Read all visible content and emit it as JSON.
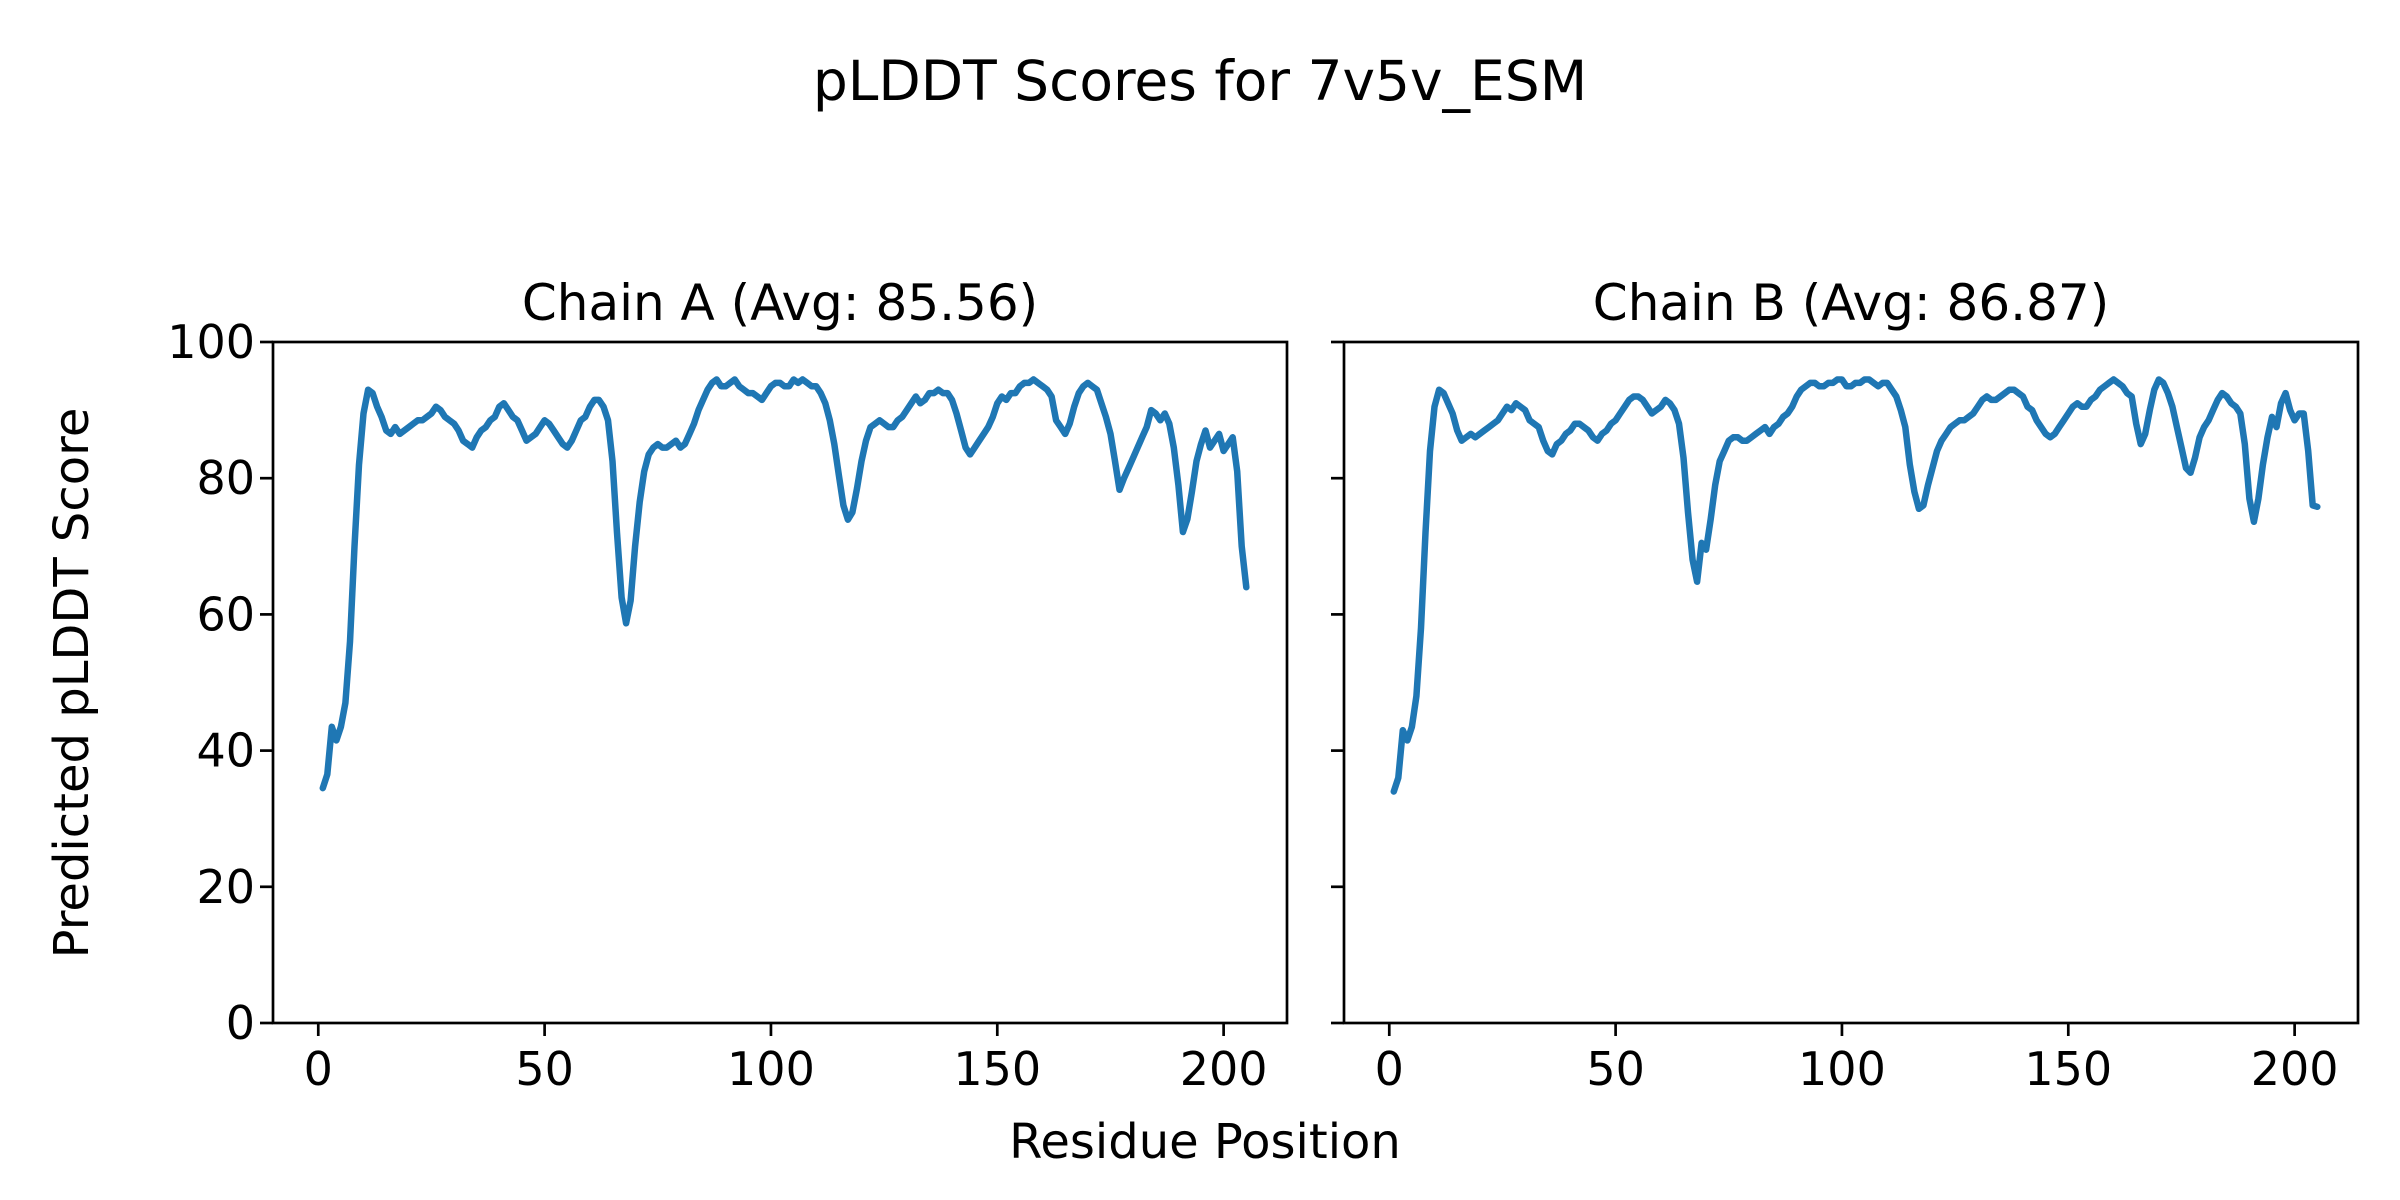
{
  "figure": {
    "suptitle": "pLDDT Scores for 7v5v_ESM",
    "xlabel": "Residue Position",
    "ylabel": "Predicted pLDDT Score",
    "line_color": "#1f77b4",
    "text_color": "#000000",
    "background_color": "#ffffff"
  },
  "chart_data": [
    {
      "type": "line",
      "title": "Chain A (Avg: 85.56)",
      "chain": "A",
      "average_plddt": 85.56,
      "xlabel": "Residue Position",
      "ylabel": "Predicted pLDDT Score",
      "color": "#1f77b4",
      "grid": false,
      "legend": "none",
      "xlim": [
        -10,
        214
      ],
      "ylim": [
        0,
        100
      ],
      "xticks": [
        0,
        50,
        100,
        150,
        200
      ],
      "yticks": [
        0,
        20,
        40,
        60,
        80,
        100
      ],
      "x_start": 1,
      "y": [
        34.5,
        36.5,
        43.5,
        41.5,
        43.5,
        47,
        56,
        70,
        82,
        89.5,
        93,
        92.5,
        90.5,
        89,
        87,
        86.5,
        87.5,
        86.5,
        87,
        87.5,
        88,
        88.5,
        88.5,
        89,
        89.5,
        90.5,
        90,
        89,
        88.5,
        88,
        87,
        85.5,
        85,
        84.5,
        86,
        87,
        87.5,
        88.5,
        89,
        90.5,
        91,
        90,
        89,
        88.5,
        87,
        85.5,
        86,
        86.5,
        87.5,
        88.5,
        88,
        87,
        86,
        85,
        84.5,
        85.5,
        87,
        88.5,
        89,
        90.5,
        91.5,
        91.5,
        90.5,
        88.5,
        82.5,
        72,
        62.5,
        58.7,
        62,
        70,
        76.5,
        81,
        83.5,
        84.5,
        85,
        84.5,
        84.5,
        85,
        85.5,
        84.5,
        85,
        86.5,
        88,
        90,
        91.5,
        93,
        94,
        94.5,
        93.5,
        93.5,
        94,
        94.5,
        93.5,
        93,
        92.5,
        92.5,
        92,
        91.5,
        92.5,
        93.5,
        94,
        94,
        93.5,
        93.5,
        94.5,
        94,
        94.5,
        94,
        93.5,
        93.5,
        92.5,
        91,
        88.5,
        85,
        80.5,
        76,
        73.9,
        75,
        78.5,
        82.5,
        85.5,
        87.5,
        88,
        88.5,
        88,
        87.5,
        87.5,
        88.5,
        89,
        90,
        91,
        92,
        91,
        91.5,
        92.5,
        92.5,
        93,
        92.5,
        92.5,
        91.5,
        89.5,
        87,
        84.5,
        83.5,
        84.5,
        85.5,
        86.5,
        87.5,
        89,
        91,
        92,
        91.5,
        92.5,
        92.5,
        93.5,
        94,
        94,
        94.5,
        94,
        93.5,
        93,
        92,
        88.5,
        87.5,
        86.5,
        88,
        90.5,
        92.5,
        93.5,
        94,
        93.5,
        93,
        91,
        89,
        86.5,
        82.5,
        78.3,
        80,
        81.5,
        83,
        84.5,
        86,
        87.5,
        90,
        89.5,
        88.5,
        89.5,
        88,
        84.5,
        79,
        72.1,
        74,
        78,
        82.5,
        85,
        87,
        84.5,
        85.5,
        86.5,
        84,
        85,
        86,
        81,
        70,
        64
      ]
    },
    {
      "type": "line",
      "title": "Chain B (Avg: 86.87)",
      "chain": "B",
      "average_plddt": 86.87,
      "xlabel": "Residue Position",
      "ylabel": "Predicted pLDDT Score",
      "color": "#1f77b4",
      "grid": false,
      "legend": "none",
      "xlim": [
        -10,
        214
      ],
      "ylim": [
        0,
        100
      ],
      "xticks": [
        0,
        50,
        100,
        150,
        200
      ],
      "yticks": [
        0,
        20,
        40,
        60,
        80,
        100
      ],
      "x_start": 1,
      "y": [
        34,
        36,
        43,
        41.5,
        43.5,
        48,
        58,
        72,
        84,
        90.5,
        93,
        92.5,
        91,
        89.5,
        87,
        85.5,
        86,
        86.5,
        86,
        86.5,
        87,
        87.5,
        88,
        88.5,
        89.5,
        90.5,
        90,
        91,
        90.5,
        90,
        88.5,
        88,
        87.5,
        85.5,
        84,
        83.5,
        85,
        85.5,
        86.5,
        87,
        88,
        88,
        87.5,
        87,
        86,
        85.5,
        86.5,
        87,
        88,
        88.5,
        89.5,
        90.5,
        91.5,
        92,
        92,
        91.5,
        90.5,
        89.5,
        90,
        90.5,
        91.5,
        91,
        90,
        88,
        83,
        75,
        68,
        64.8,
        70.5,
        69.5,
        74,
        79,
        82.5,
        84,
        85.5,
        86,
        86,
        85.5,
        85.5,
        86,
        86.5,
        87,
        87.5,
        86.5,
        87.5,
        88,
        89,
        89.5,
        90.5,
        92,
        93,
        93.5,
        94,
        94,
        93.5,
        93.5,
        94,
        94,
        94.5,
        94.5,
        93.5,
        93.5,
        94,
        94,
        94.5,
        94.5,
        94,
        93.5,
        94,
        94,
        93,
        92,
        90,
        87.5,
        82,
        78,
        75.5,
        76,
        79,
        81.5,
        84,
        85.5,
        86.5,
        87.5,
        88,
        88.5,
        88.5,
        89,
        89.5,
        90.5,
        91.5,
        92,
        91.5,
        91.5,
        92,
        92.5,
        93,
        93,
        92.5,
        92,
        90.5,
        90,
        88.5,
        87.5,
        86.5,
        86,
        86.5,
        87.5,
        88.5,
        89.5,
        90.5,
        91,
        90.5,
        90.5,
        91.5,
        92,
        93,
        93.5,
        94,
        94.5,
        94,
        93.5,
        92.5,
        92,
        88,
        85,
        86.5,
        90,
        93,
        94.5,
        94,
        92.5,
        90.5,
        87.5,
        84.5,
        81.5,
        80.8,
        83,
        86,
        87.5,
        88.5,
        90,
        91.5,
        92.5,
        92,
        91,
        90.5,
        89.5,
        85,
        77,
        73.6,
        77,
        82,
        86,
        89,
        87.5,
        91,
        92.5,
        90,
        88.5,
        89.5,
        89.5,
        84,
        76,
        75.8
      ]
    }
  ]
}
